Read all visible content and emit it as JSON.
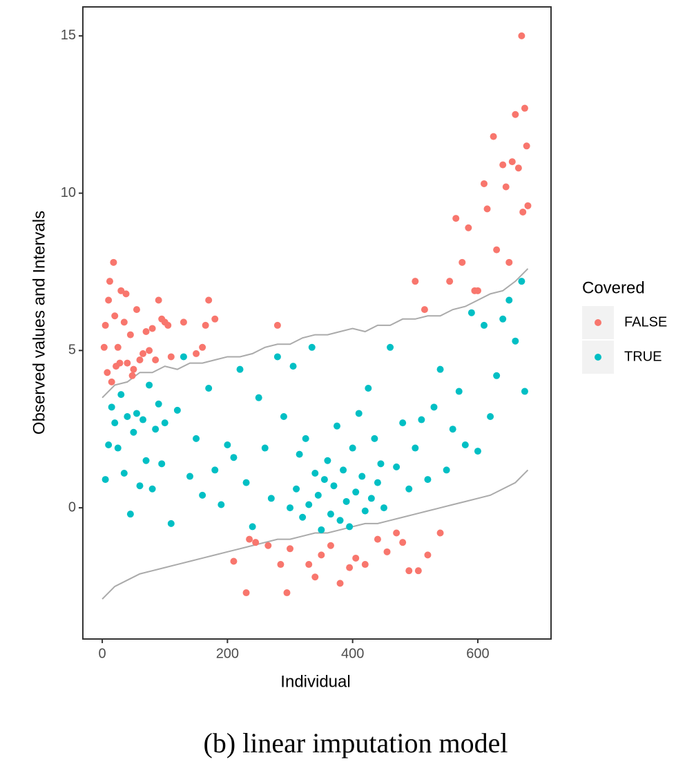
{
  "chart_data": {
    "type": "scatter",
    "x_label": "Individual",
    "y_label": "Observed values and Intervals",
    "caption": "(b) linear imputation model",
    "legend_title": "Covered",
    "legend_position": "right",
    "xlim": [
      -31,
      717
    ],
    "ylim": [
      -4.17,
      15.92
    ],
    "xticks": [
      0,
      200,
      400,
      600
    ],
    "yticks": [
      0,
      5,
      10,
      15
    ],
    "grid": false,
    "intervals": {
      "color": "#aaaaaa",
      "x": [
        0,
        20,
        40,
        60,
        80,
        100,
        120,
        140,
        160,
        180,
        200,
        220,
        240,
        260,
        280,
        300,
        320,
        340,
        360,
        380,
        400,
        420,
        440,
        460,
        480,
        500,
        520,
        540,
        560,
        580,
        600,
        620,
        640,
        660,
        680
      ],
      "upper": [
        3.5,
        3.9,
        4.0,
        4.3,
        4.3,
        4.5,
        4.4,
        4.6,
        4.6,
        4.7,
        4.8,
        4.8,
        4.9,
        5.1,
        5.2,
        5.2,
        5.4,
        5.5,
        5.5,
        5.6,
        5.7,
        5.6,
        5.8,
        5.8,
        6.0,
        6.0,
        6.1,
        6.1,
        6.3,
        6.4,
        6.6,
        6.8,
        6.9,
        7.2,
        7.6
      ],
      "lower": [
        -2.9,
        -2.5,
        -2.3,
        -2.1,
        -2.0,
        -1.9,
        -1.8,
        -1.7,
        -1.6,
        -1.5,
        -1.4,
        -1.3,
        -1.2,
        -1.1,
        -1.0,
        -1.0,
        -0.9,
        -0.8,
        -0.8,
        -0.7,
        -0.6,
        -0.5,
        -0.5,
        -0.4,
        -0.3,
        -0.2,
        -0.1,
        0.0,
        0.1,
        0.2,
        0.3,
        0.4,
        0.6,
        0.8,
        1.2
      ]
    },
    "series": [
      {
        "name": "FALSE",
        "color": "#f8766d",
        "x": [
          3,
          5,
          8,
          10,
          12,
          15,
          18,
          20,
          22,
          25,
          28,
          30,
          35,
          38,
          40,
          45,
          48,
          50,
          55,
          60,
          65,
          70,
          75,
          80,
          85,
          90,
          95,
          100,
          105,
          110,
          130,
          150,
          160,
          165,
          170,
          180,
          210,
          230,
          235,
          245,
          265,
          280,
          285,
          295,
          300,
          330,
          340,
          350,
          365,
          380,
          395,
          405,
          420,
          440,
          455,
          470,
          480,
          490,
          500,
          505,
          515,
          520,
          540,
          555,
          565,
          575,
          585,
          595,
          600,
          610,
          615,
          625,
          630,
          640,
          645,
          650,
          655,
          660,
          665,
          670,
          672,
          675,
          678,
          680
        ],
        "values": [
          5.1,
          5.8,
          4.3,
          6.6,
          7.2,
          4.0,
          7.8,
          6.1,
          4.5,
          5.1,
          4.6,
          6.9,
          5.9,
          6.8,
          4.6,
          5.5,
          4.2,
          4.4,
          6.3,
          4.7,
          4.9,
          5.6,
          5.0,
          5.7,
          4.7,
          6.6,
          6.0,
          5.9,
          5.8,
          4.8,
          5.9,
          4.9,
          5.1,
          5.8,
          6.6,
          6.0,
          -1.7,
          -2.7,
          -1.0,
          -1.1,
          -1.2,
          5.8,
          -1.8,
          -2.7,
          -1.3,
          -1.8,
          -2.2,
          -1.5,
          -1.2,
          -2.4,
          -1.9,
          -1.6,
          -1.8,
          -1.0,
          -1.4,
          -0.8,
          -1.1,
          -2.0,
          7.2,
          -2.0,
          6.3,
          -1.5,
          -0.8,
          7.2,
          9.2,
          7.8,
          8.9,
          6.9,
          6.9,
          10.3,
          9.5,
          11.8,
          8.2,
          10.9,
          10.2,
          7.8,
          11.0,
          12.5,
          10.8,
          15.0,
          9.4,
          12.7,
          11.5,
          9.6
        ]
      },
      {
        "name": "TRUE",
        "color": "#00bfc4",
        "x": [
          5,
          10,
          15,
          20,
          25,
          30,
          35,
          40,
          45,
          50,
          55,
          60,
          65,
          70,
          75,
          80,
          85,
          90,
          95,
          100,
          110,
          120,
          130,
          140,
          150,
          160,
          170,
          180,
          190,
          200,
          210,
          220,
          230,
          240,
          250,
          260,
          270,
          280,
          290,
          300,
          305,
          310,
          315,
          320,
          325,
          330,
          335,
          340,
          345,
          350,
          355,
          360,
          365,
          370,
          375,
          380,
          385,
          390,
          395,
          400,
          405,
          410,
          415,
          420,
          425,
          430,
          435,
          440,
          445,
          450,
          460,
          470,
          480,
          490,
          500,
          510,
          520,
          530,
          540,
          550,
          560,
          570,
          580,
          590,
          600,
          610,
          620,
          630,
          640,
          650,
          660,
          670,
          675
        ],
        "values": [
          0.9,
          2.0,
          3.2,
          2.7,
          1.9,
          3.6,
          1.1,
          2.9,
          -0.2,
          2.4,
          3.0,
          0.7,
          2.8,
          1.5,
          3.9,
          0.6,
          2.5,
          3.3,
          1.4,
          2.7,
          -0.5,
          3.1,
          4.8,
          1.0,
          2.2,
          0.4,
          3.8,
          1.2,
          0.1,
          2.0,
          1.6,
          4.4,
          0.8,
          -0.6,
          3.5,
          1.9,
          0.3,
          4.8,
          2.9,
          0.0,
          4.5,
          0.6,
          1.7,
          -0.3,
          2.2,
          0.1,
          5.1,
          1.1,
          0.4,
          -0.7,
          0.9,
          1.5,
          -0.2,
          0.7,
          2.6,
          -0.4,
          1.2,
          0.2,
          -0.6,
          1.9,
          0.5,
          3.0,
          1.0,
          -0.1,
          3.8,
          0.3,
          2.2,
          0.8,
          1.4,
          0.0,
          5.1,
          1.3,
          2.7,
          0.6,
          1.9,
          2.8,
          0.9,
          3.2,
          4.4,
          1.2,
          2.5,
          3.7,
          2.0,
          6.2,
          1.8,
          5.8,
          2.9,
          4.2,
          6.0,
          6.6,
          5.3,
          7.2,
          3.7
        ]
      }
    ]
  }
}
